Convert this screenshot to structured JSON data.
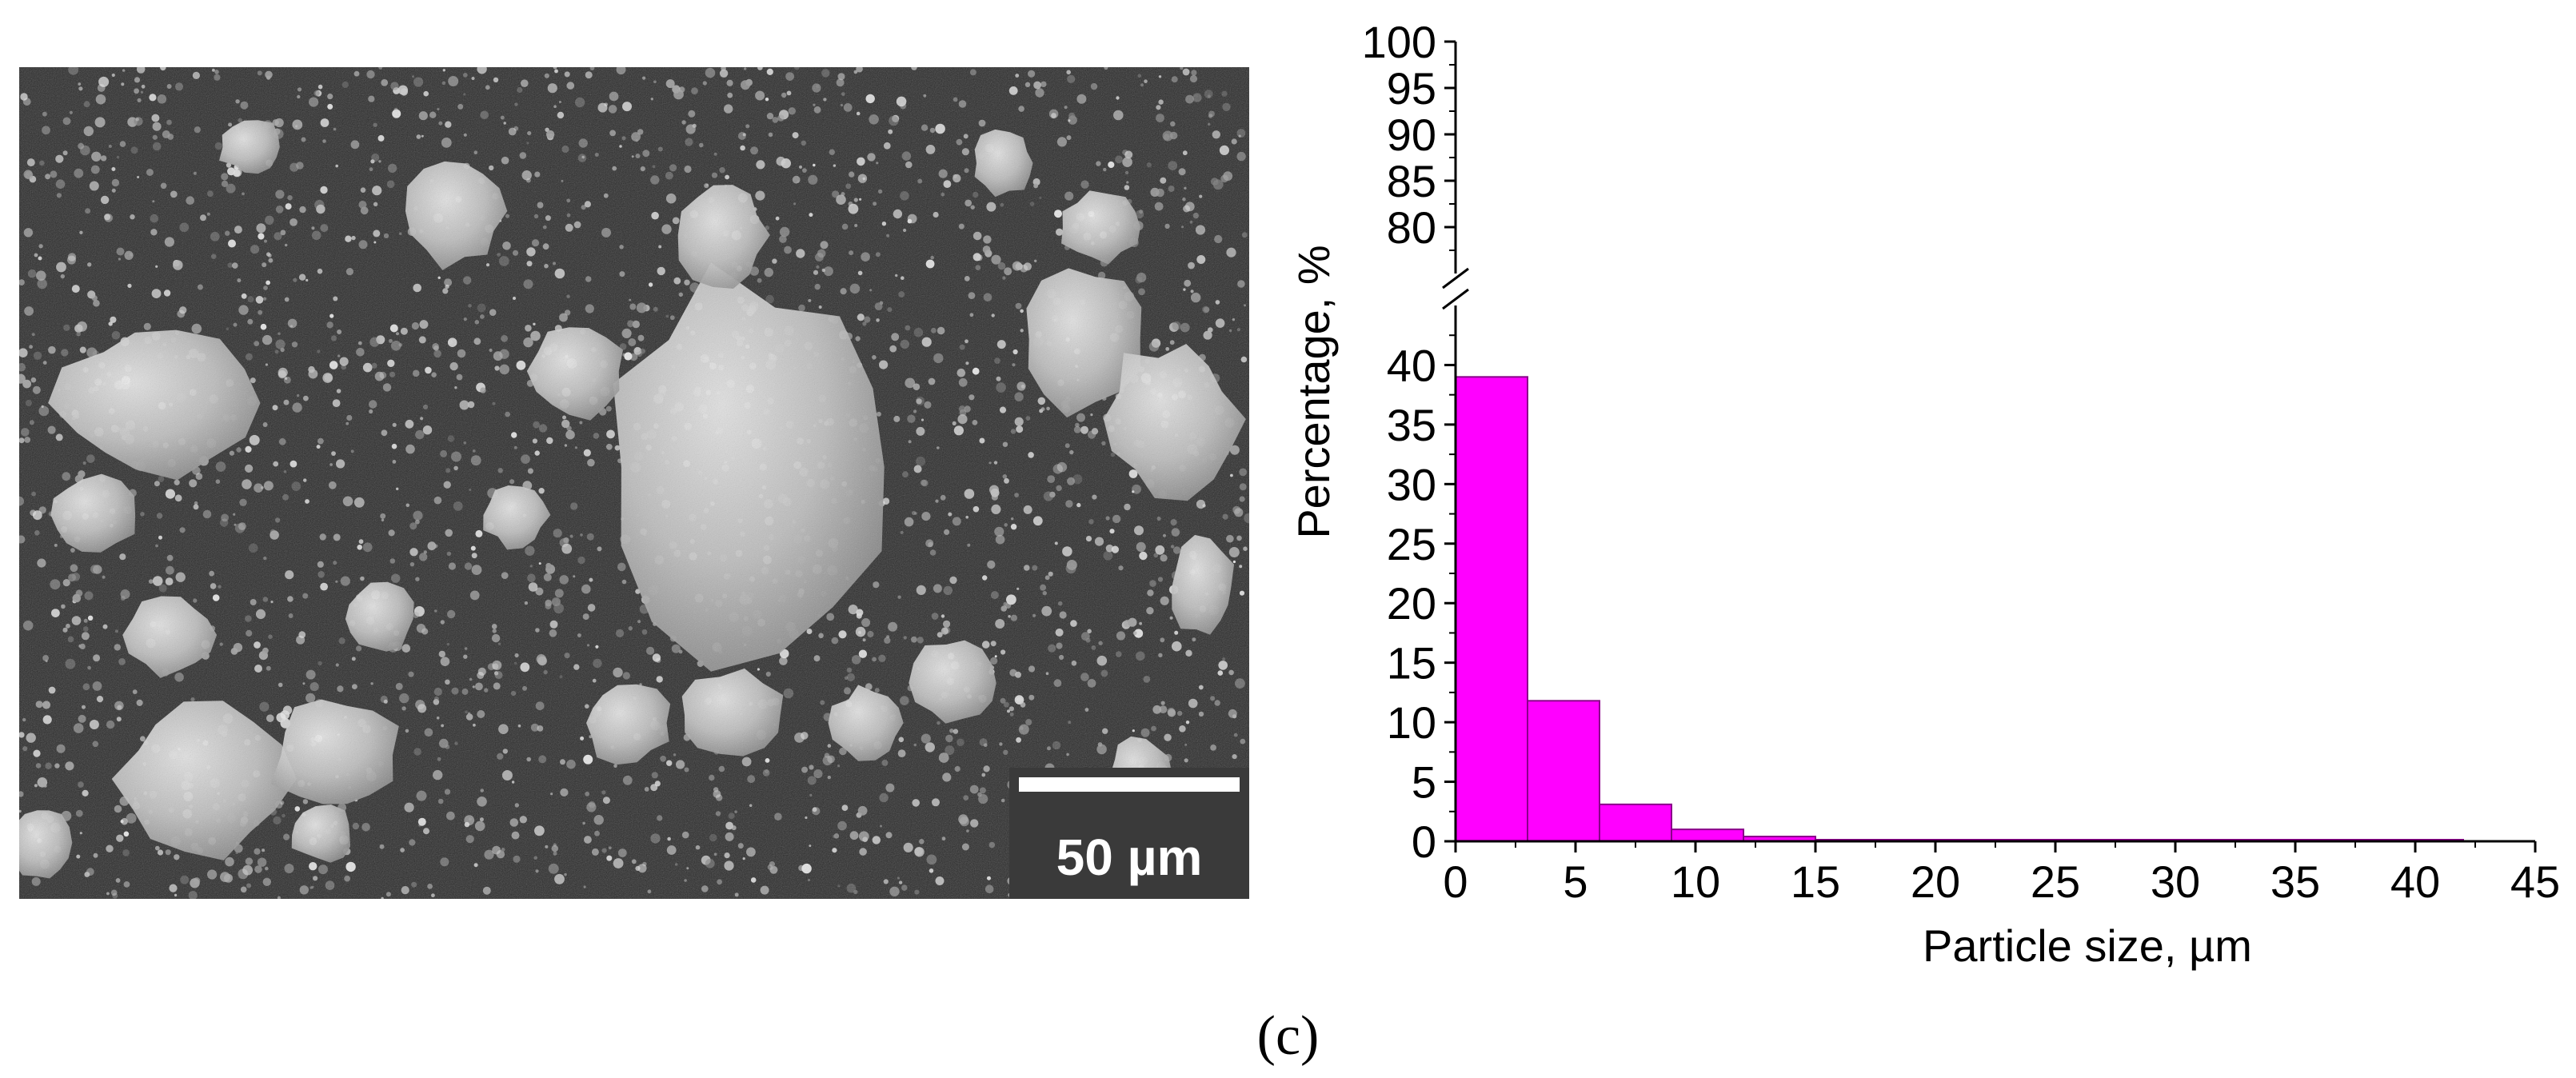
{
  "sem_image": {
    "scale_bar_label": "50 µm",
    "background_color": "#2a2a2a",
    "particle_color": "#d9d9d9",
    "scale_box_color": "#3a3a3a"
  },
  "caption": "(c)",
  "chart_data": {
    "type": "bar",
    "bar_color": "#ff00ff",
    "bar_edge_color": "#8a008a",
    "xlabel": "Particle size, µm",
    "ylabel": "Percentage, %",
    "xlim": [
      0,
      45
    ],
    "x_ticks": [
      0,
      5,
      10,
      15,
      20,
      25,
      30,
      35,
      40,
      45
    ],
    "y_lower_range": [
      0,
      45
    ],
    "y_lower_ticks": [
      0,
      5,
      10,
      15,
      20,
      25,
      30,
      35,
      40
    ],
    "y_upper_range": [
      75,
      100
    ],
    "y_upper_ticks": [
      80,
      85,
      90,
      95,
      100
    ],
    "axis_break": true,
    "grid": false,
    "bins": [
      {
        "start": 0,
        "end": 3,
        "value": 39.0
      },
      {
        "start": 3,
        "end": 6,
        "value": 11.8
      },
      {
        "start": 6,
        "end": 9,
        "value": 3.1
      },
      {
        "start": 9,
        "end": 12,
        "value": 1.0
      },
      {
        "start": 12,
        "end": 15,
        "value": 0.4
      },
      {
        "start": 15,
        "end": 18,
        "value": 0.1
      },
      {
        "start": 18,
        "end": 21,
        "value": 0.1
      },
      {
        "start": 21,
        "end": 24,
        "value": 0.05
      },
      {
        "start": 24,
        "end": 27,
        "value": 0.05
      },
      {
        "start": 27,
        "end": 30,
        "value": 0.05
      },
      {
        "start": 30,
        "end": 33,
        "value": 0.05
      },
      {
        "start": 33,
        "end": 36,
        "value": 0.05
      },
      {
        "start": 36,
        "end": 39,
        "value": 0.05
      },
      {
        "start": 39,
        "end": 42,
        "value": 0.05
      }
    ]
  }
}
